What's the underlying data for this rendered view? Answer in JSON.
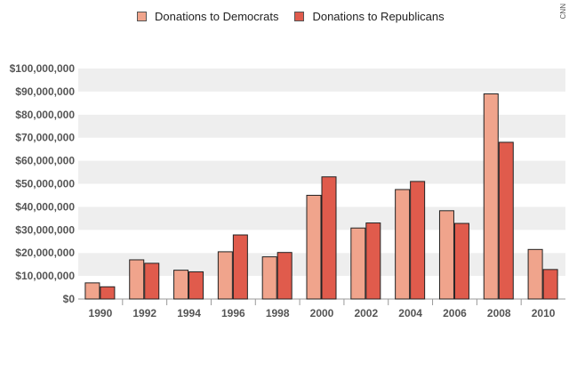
{
  "watermark": "CNN",
  "chart_data": {
    "type": "bar",
    "categories": [
      "1990",
      "1992",
      "1994",
      "1996",
      "1998",
      "2000",
      "2002",
      "2004",
      "2006",
      "2008",
      "2010"
    ],
    "series": [
      {
        "name": "Donations to Democrats",
        "color": "#f0a48c",
        "values": [
          7000000,
          17000000,
          12500000,
          20500000,
          18300000,
          45000000,
          30800000,
          47500000,
          38300000,
          89000000,
          21500000
        ]
      },
      {
        "name": "Donations to Republicans",
        "color": "#e05b4c",
        "values": [
          5300000,
          15500000,
          11800000,
          27800000,
          20200000,
          53000000,
          33000000,
          51000000,
          32800000,
          68000000,
          12800000
        ]
      }
    ],
    "ylim": [
      0,
      100000000
    ],
    "yticks": [
      "$0",
      "$10,000,000",
      "$20,000,000",
      "$30,000,000",
      "$40,000,000",
      "$50,000,000",
      "$60,000,000",
      "$70,000,000",
      "$80,000,000",
      "$90,000,000",
      "$100,000,000"
    ],
    "legend_position": "top",
    "grid": "alternating horizontal bands"
  }
}
